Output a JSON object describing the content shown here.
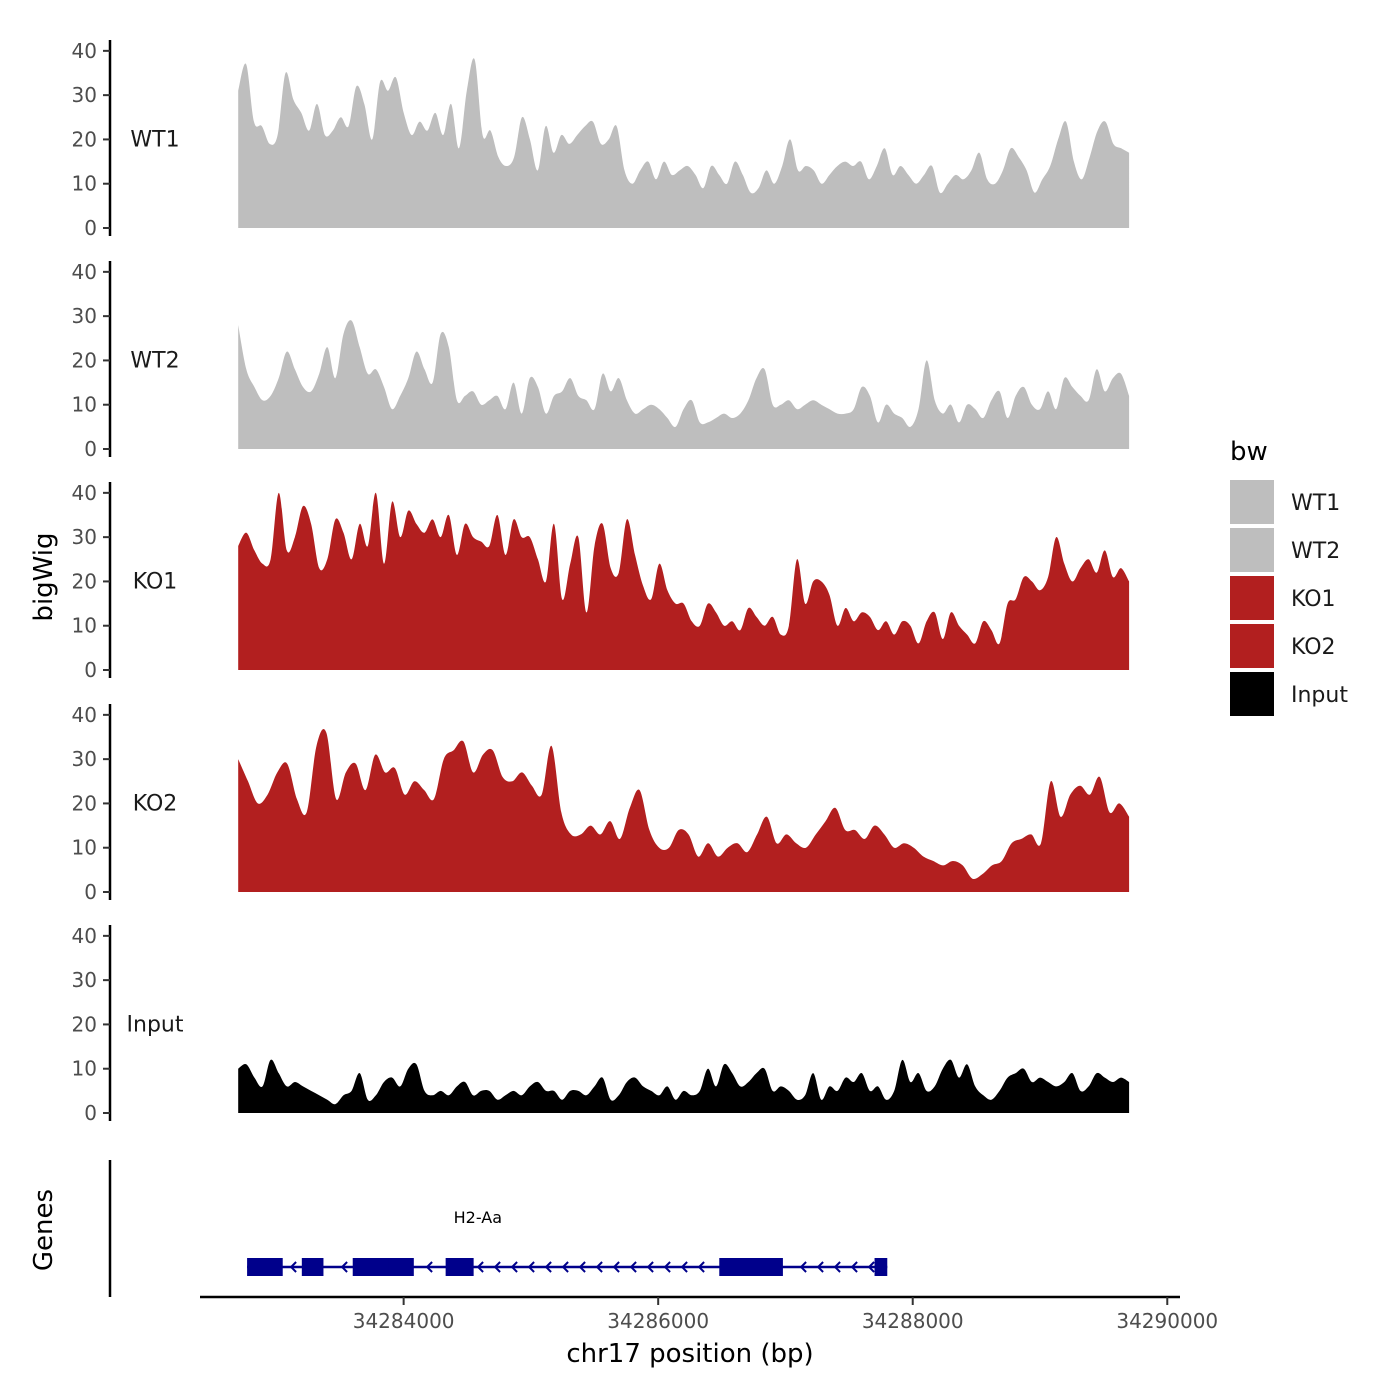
{
  "chart_data": {
    "type": "area",
    "chromosome": "chr17",
    "xlabel": "chr17 position (bp)",
    "ylabel": "bigWig",
    "xlim": [
      34282400,
      34290100
    ],
    "ylim": [
      0,
      42
    ],
    "x_ticks": [
      34284000,
      34286000,
      34288000,
      34290000
    ],
    "x_tick_labels": [
      "34284000",
      "34286000",
      "34288000",
      "34290000"
    ],
    "y_ticks": [
      0,
      10,
      20,
      30,
      40
    ],
    "y_tick_labels": [
      "0",
      "10",
      "20",
      "30",
      "40"
    ],
    "legend": {
      "title": "bw",
      "entries": [
        {
          "label": "WT1",
          "color": "#bebebe"
        },
        {
          "label": "WT2",
          "color": "#bebebe"
        },
        {
          "label": "KO1",
          "color": "#b21f1f"
        },
        {
          "label": "KO2",
          "color": "#b21f1f"
        },
        {
          "label": "Input",
          "color": "#000000"
        }
      ]
    },
    "series": [
      {
        "name": "WT1",
        "color": "#bebebe",
        "x_start": 34282700,
        "x_end": 34289700,
        "values": [
          31,
          37,
          24,
          23,
          19,
          21,
          35,
          29,
          26,
          22,
          28,
          21,
          22,
          25,
          23,
          32,
          28,
          20,
          33,
          31,
          34,
          26,
          21,
          24,
          22,
          26,
          21,
          28,
          18,
          31,
          38,
          21,
          22,
          16,
          14,
          16,
          25,
          20,
          13,
          23,
          17,
          21,
          19,
          21,
          23,
          24,
          19,
          20,
          23,
          13,
          10,
          13,
          15,
          11,
          15,
          12,
          13,
          14,
          12,
          9,
          14,
          12,
          10,
          15,
          12,
          8,
          9,
          13,
          10,
          14,
          20,
          13,
          14,
          13,
          10,
          12,
          14,
          15,
          14,
          15,
          11,
          14,
          18,
          12,
          14,
          12,
          10,
          12,
          14,
          8,
          10,
          12,
          11,
          13,
          17,
          11,
          10,
          13,
          18,
          16,
          13,
          8,
          11,
          14,
          20,
          24,
          15,
          11,
          16,
          22,
          24,
          19,
          18,
          17
        ]
      },
      {
        "name": "WT2",
        "color": "#bebebe",
        "x_start": 34282700,
        "x_end": 34289700,
        "values": [
          28,
          18,
          14,
          11,
          12,
          16,
          22,
          18,
          14,
          13,
          17,
          23,
          16,
          26,
          29,
          23,
          17,
          18,
          14,
          9,
          12,
          16,
          22,
          18,
          15,
          26,
          23,
          11,
          12,
          13,
          10,
          11,
          12,
          9,
          15,
          8,
          16,
          14,
          8,
          12,
          13,
          16,
          12,
          11,
          9,
          17,
          13,
          16,
          11,
          8,
          9,
          10,
          9,
          7,
          5,
          9,
          11,
          6,
          6,
          7,
          8,
          7,
          8,
          11,
          16,
          18,
          10,
          10,
          11,
          9,
          10,
          11,
          10,
          9,
          8,
          8,
          9,
          14,
          12,
          6,
          10,
          8,
          7,
          5,
          9,
          20,
          11,
          8,
          10,
          6,
          10,
          9,
          7,
          11,
          13,
          7,
          12,
          14,
          10,
          9,
          13,
          9,
          16,
          14,
          12,
          11,
          18,
          13,
          16,
          17,
          12
        ]
      },
      {
        "name": "KO1",
        "color": "#b21f1f",
        "x_start": 34282700,
        "x_end": 34289700,
        "values": [
          28,
          31,
          27,
          24,
          25,
          40,
          27,
          30,
          37,
          33,
          23,
          25,
          34,
          31,
          25,
          33,
          28,
          40,
          24,
          38,
          30,
          36,
          33,
          31,
          34,
          30,
          35,
          26,
          33,
          30,
          29,
          28,
          35,
          26,
          34,
          30,
          30,
          25,
          20,
          33,
          16,
          24,
          30,
          13,
          28,
          33,
          23,
          22,
          34,
          26,
          19,
          16,
          24,
          18,
          15,
          15,
          11,
          10,
          15,
          13,
          10,
          11,
          9,
          14,
          12,
          10,
          12,
          8,
          10,
          25,
          15,
          20,
          20,
          17,
          10,
          14,
          11,
          13,
          12,
          9,
          11,
          8,
          11,
          10,
          6,
          11,
          13,
          7,
          13,
          10,
          8,
          6,
          11,
          9,
          6,
          15,
          16,
          21,
          20,
          18,
          21,
          30,
          24,
          20,
          23,
          25,
          22,
          27,
          21,
          23,
          20
        ]
      },
      {
        "name": "KO2",
        "color": "#b21f1f",
        "x_start": 34282700,
        "x_end": 34289700,
        "values": [
          30,
          25,
          20,
          22,
          27,
          29,
          21,
          18,
          33,
          36,
          21,
          27,
          29,
          23,
          31,
          27,
          28,
          22,
          25,
          23,
          21,
          30,
          32,
          34,
          27,
          31,
          32,
          26,
          25,
          27,
          24,
          22,
          33,
          18,
          13,
          13,
          15,
          13,
          16,
          12,
          19,
          23,
          14,
          10,
          10,
          14,
          13,
          8,
          11,
          8,
          10,
          11,
          9,
          13,
          17,
          11,
          13,
          11,
          10,
          13,
          16,
          19,
          14,
          14,
          12,
          15,
          13,
          10,
          11,
          10,
          8,
          7,
          6,
          7,
          6,
          3,
          4,
          6,
          7,
          11,
          12,
          13,
          11,
          25,
          17,
          22,
          24,
          22,
          26,
          18,
          20,
          17
        ]
      },
      {
        "name": "Input",
        "color": "#000000",
        "x_start": 34282700,
        "x_end": 34289700,
        "values": [
          10,
          11,
          8,
          6,
          12,
          9,
          6,
          7,
          6,
          5,
          4,
          3,
          2,
          4,
          5,
          9,
          3,
          4,
          7,
          8,
          6,
          10,
          11,
          5,
          4,
          5,
          4,
          6,
          7,
          4,
          5,
          5,
          3,
          4,
          5,
          4,
          6,
          7,
          5,
          5,
          3,
          5,
          5,
          4,
          6,
          8,
          3,
          4,
          7,
          8,
          6,
          5,
          4,
          6,
          3,
          5,
          4,
          5,
          10,
          6,
          11,
          9,
          6,
          7,
          9,
          10,
          5,
          6,
          5,
          3,
          4,
          9,
          3,
          6,
          5,
          8,
          7,
          9,
          5,
          6,
          3,
          5,
          12,
          7,
          9,
          5,
          6,
          10,
          12,
          8,
          11,
          6,
          4,
          3,
          5,
          8,
          9,
          10,
          7,
          8,
          7,
          6,
          7,
          9,
          5,
          6,
          9,
          8,
          7,
          8,
          7
        ]
      }
    ],
    "gene_track": {
      "label": "Genes",
      "genes": [
        {
          "name": "H2-Aa",
          "strand": "-",
          "start": 34282770,
          "end": 34287800,
          "exons": [
            [
              34282770,
              34283050
            ],
            [
              34283200,
              34283370
            ],
            [
              34283600,
              34283900
            ],
            [
              34283880,
              34284080
            ],
            [
              34284330,
              34284550
            ],
            [
              34286480,
              34286980
            ],
            [
              34287700,
              34287800
            ]
          ],
          "color": "#00008b"
        }
      ]
    }
  }
}
